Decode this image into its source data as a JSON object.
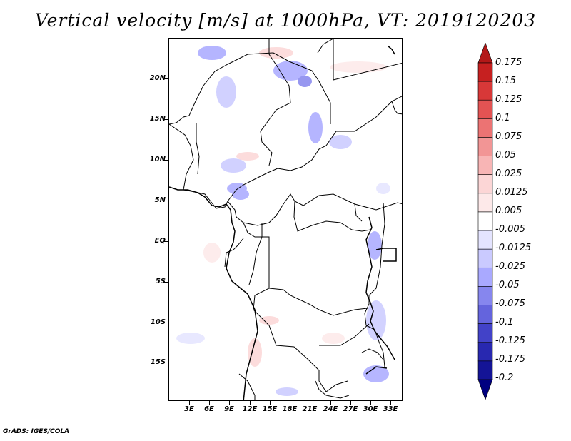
{
  "title": "Vertical velocity [m/s] at 1000hPa, VT: 2019120203",
  "credit": "GrADS: IGES/COLA",
  "map": {
    "lat_ticks": [
      "20N",
      "15N",
      "10N",
      "5N",
      "EQ",
      "5S",
      "10S",
      "15S"
    ],
    "lon_ticks": [
      "3E",
      "6E",
      "9E",
      "12E",
      "15E",
      "18E",
      "21E",
      "24E",
      "27E",
      "30E",
      "33E"
    ],
    "lon_range": [
      0,
      34.5
    ],
    "lat_range": [
      -20,
      25
    ]
  },
  "colorbar": {
    "levels": [
      "0.175",
      "0.15",
      "0.125",
      "0.1",
      "0.075",
      "0.05",
      "0.025",
      "0.0125",
      "0.005",
      "-0.005",
      "-0.0125",
      "-0.025",
      "-0.05",
      "-0.075",
      "-0.1",
      "-0.125",
      "-0.175",
      "-0.2"
    ],
    "colors": [
      "#b31818",
      "#c62020",
      "#d83838",
      "#e35353",
      "#ec7373",
      "#f29595",
      "#f8b5b5",
      "#fcd6d6",
      "#fde9e9",
      "#ffffff",
      "#e4e4ff",
      "#cacaff",
      "#a9a9ff",
      "#8686ee",
      "#6464dd",
      "#4242c8",
      "#2828b0",
      "#141496",
      "#000080"
    ]
  }
}
